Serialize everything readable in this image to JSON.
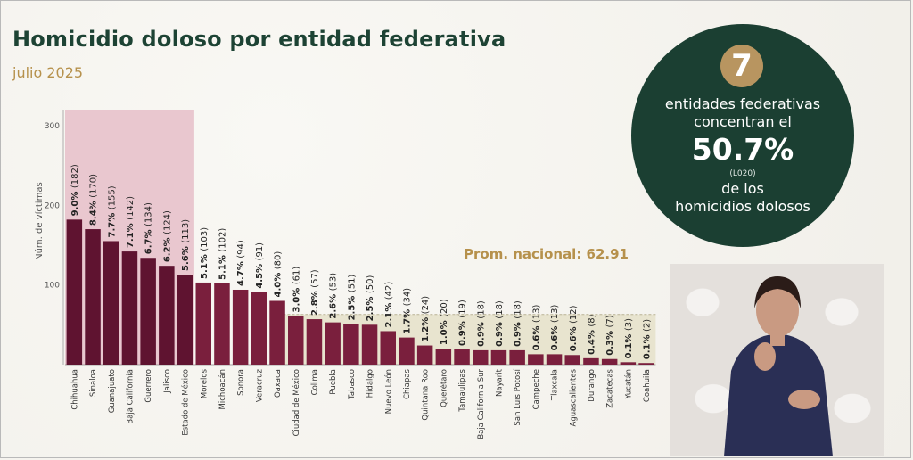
{
  "header": {
    "title": "Homicidio doloso por entidad federativa",
    "subtitle": "julio 2025"
  },
  "average_label": "Prom. nacional: 62.91",
  "highlight_circle": {
    "count": "7",
    "line1": "entidades federativas",
    "line2": "concentran el",
    "percent": "50.7%",
    "small": "(L020)",
    "line3": "de los",
    "line4": "homicidios dolosos"
  },
  "colors": {
    "bar": "#7a1f3d",
    "bar_top7": "#5f1330",
    "highlight_band": "#e9c7cf",
    "average_band": "#e8e4cf",
    "title": "#1d4334",
    "accent": "#b6914c"
  },
  "chart_data": {
    "type": "bar",
    "ylabel": "Núm. de víctimas",
    "ylim": [
      0,
      320
    ],
    "yticks": [
      100,
      200,
      300
    ],
    "average": 62.91,
    "highlight_count": 7,
    "grid": false,
    "categories": [
      "Chihuahua",
      "Sinaloa",
      "Guanajuato",
      "Baja California",
      "Guerrero",
      "Jalisco",
      "Estado de México",
      "Morelos",
      "Michoacán",
      "Sonora",
      "Veracruz",
      "Oaxaca",
      "Ciudad de México",
      "Colima",
      "Puebla",
      "Tabasco",
      "Hidalgo",
      "Nuevo León",
      "Chiapas",
      "Quintana Roo",
      "Querétaro",
      "Tamaulipas",
      "Baja California Sur",
      "Nayarit",
      "San Luis Potosí",
      "Campeche",
      "Tlaxcala",
      "Aguascalientes",
      "Durango",
      "Zacatecas",
      "Yucatán",
      "Coahuila"
    ],
    "values": [
      182,
      170,
      155,
      142,
      134,
      124,
      113,
      103,
      102,
      94,
      91,
      80,
      61,
      57,
      53,
      51,
      50,
      42,
      34,
      24,
      20,
      19,
      18,
      18,
      18,
      13,
      13,
      12,
      8,
      7,
      3,
      2
    ],
    "percents": [
      "9.0%",
      "8.4%",
      "7.7%",
      "7.1%",
      "6.7%",
      "6.2%",
      "5.6%",
      "5.1%",
      "5.1%",
      "4.7%",
      "4.5%",
      "4.0%",
      "3.0%",
      "2.8%",
      "2.6%",
      "2.5%",
      "2.5%",
      "2.1%",
      "1.7%",
      "1.2%",
      "1.0%",
      "0.9%",
      "0.9%",
      "0.9%",
      "0.9%",
      "0.6%",
      "0.6%",
      "0.6%",
      "0.4%",
      "0.3%",
      "0.1%",
      "0.1%"
    ],
    "bar_labels": [
      "(182)",
      "(170)",
      "(155)",
      "(142)",
      "(134)",
      "(124)",
      "(113)",
      "(103)",
      "(102)",
      "(94)",
      "(91)",
      "(80)",
      "(61)",
      "(57)",
      "(53)",
      "(51)",
      "(50)",
      "(42)",
      "(34)",
      "(24)",
      "(20)",
      "(19)",
      "(18)",
      "(18)",
      "(18)",
      "(13)",
      "(13)",
      "(12)",
      "(8)",
      "(7)",
      "(3)",
      "(2)"
    ]
  }
}
